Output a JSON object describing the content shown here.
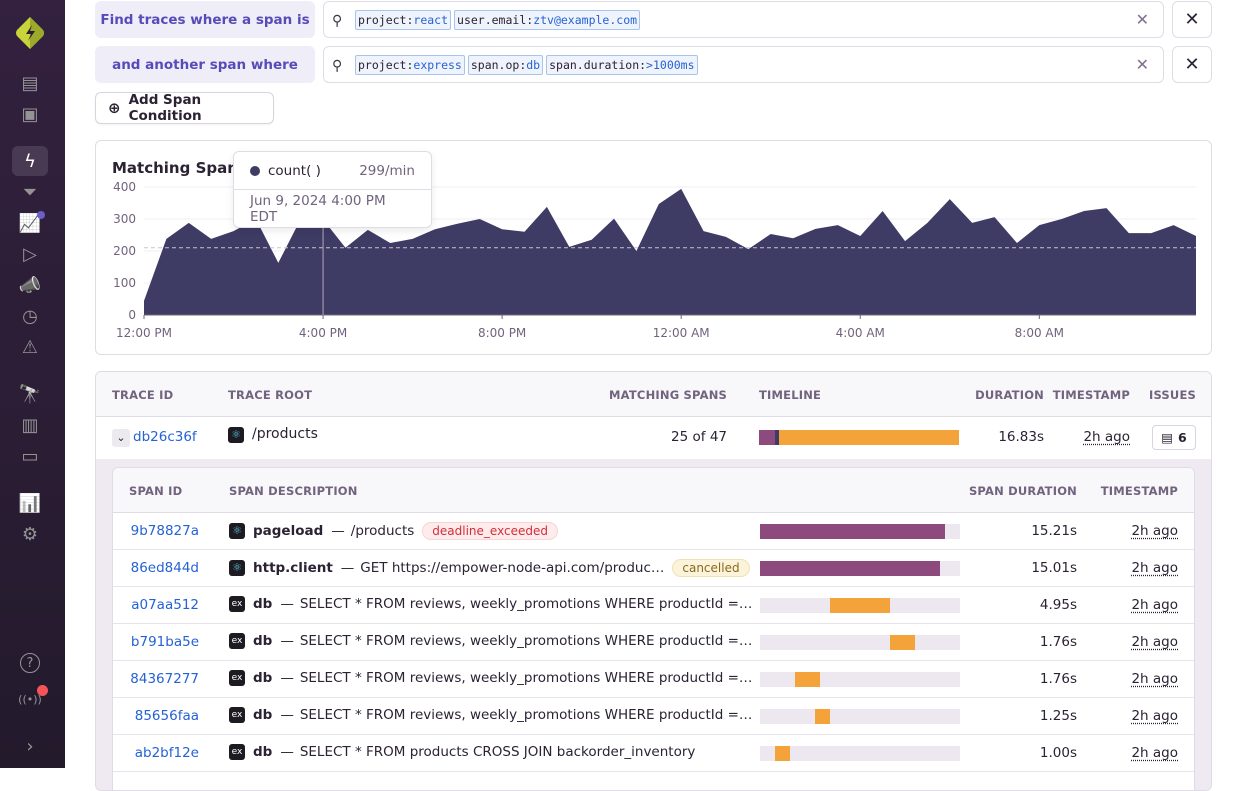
{
  "sidebar": {
    "items": [
      "issues-icon",
      "projects-icon",
      "explore-traces-icon",
      "performance-icon",
      "insights-icon",
      "replays-icon",
      "feedback-icon",
      "crons-icon",
      "alerts-icon",
      "discover-icon",
      "dashboards-icon",
      "releases-icon",
      "stats-icon",
      "settings-icon",
      "help-icon",
      "broadcasts-icon",
      "collapse-icon"
    ],
    "active": "explore-traces-icon"
  },
  "conditions": [
    {
      "label": "Find traces where a span is",
      "tokens": [
        {
          "k": "project:",
          "v": "react"
        },
        {
          "k": "user.email:",
          "v": "ztv@example.com"
        }
      ]
    },
    {
      "label": "and another span where",
      "tokens": [
        {
          "k": "project:",
          "v": "express"
        },
        {
          "k": "span.op:",
          "v": "db"
        },
        {
          "k": "span.duration:",
          "v": ">1000ms"
        }
      ]
    }
  ],
  "add_condition_label": "Add Span Condition",
  "chart": {
    "title": "Matching Spans",
    "tooltip": {
      "series": "count( )",
      "value": "299/min",
      "time": "Jun 9, 2024 4:00 PM EDT"
    }
  },
  "chart_data": {
    "type": "area",
    "title": "Matching Spans",
    "series": [
      {
        "name": "count( )",
        "values": [
          44,
          238,
          288,
          238,
          262,
          300,
          163,
          300,
          299,
          210,
          266,
          225,
          238,
          268,
          285,
          300,
          268,
          260,
          338,
          213,
          235,
          301,
          200,
          347,
          394,
          262,
          244,
          206,
          253,
          240,
          269,
          281,
          247,
          325,
          231,
          288,
          362,
          288,
          306,
          225,
          281,
          300,
          325,
          334,
          256,
          256,
          281,
          247
        ]
      }
    ],
    "x_start": "12:00 PM",
    "x_step_minutes": 30,
    "x_ticks": [
      "12:00 PM",
      "4:00 PM",
      "8:00 PM",
      "12:00 AM",
      "4:00 AM",
      "8:00 AM"
    ],
    "y_ticks": [
      0,
      100,
      200,
      300,
      400
    ],
    "ylim": [
      0,
      400
    ],
    "reference_line": 210,
    "color": "#3e3b64"
  },
  "table": {
    "headers": {
      "trace_id": "TRACE ID",
      "trace_root": "TRACE ROOT",
      "matching": "MATCHING SPANS",
      "timeline": "TIMELINE",
      "duration": "DURATION",
      "timestamp": "TIMESTAMP",
      "issues": "ISSUES"
    },
    "trace": {
      "id": "db26c36f",
      "root": "/products",
      "matching": "25 of 47",
      "duration": "16.83s",
      "timestamp": "2h ago",
      "issues": "6",
      "timeline": [
        {
          "pct": 8,
          "color": "#8c4b7c"
        },
        {
          "pct": 2,
          "color": "#3e3b64"
        },
        {
          "pct": 90,
          "color": "#f3a33a"
        }
      ]
    },
    "span_headers": {
      "id": "SPAN ID",
      "desc": "SPAN DESCRIPTION",
      "duration": "SPAN DURATION",
      "timestamp": "TIMESTAMP"
    },
    "spans": [
      {
        "id": "9b78827a",
        "project": "react",
        "op": "pageload",
        "desc": "/products",
        "badge": "deadline_exceeded",
        "badge_type": "error",
        "start": 0,
        "width": 92.5,
        "color": "#8c4b7c",
        "duration": "15.21s",
        "timestamp": "2h ago"
      },
      {
        "id": "86ed844d",
        "project": "react",
        "op": "http.client",
        "desc": "GET https://empower-node-api.com/produc…",
        "badge": "cancelled",
        "badge_type": "warning",
        "start": 0,
        "width": 90,
        "color": "#8c4b7c",
        "duration": "15.01s",
        "timestamp": "2h ago"
      },
      {
        "id": "a07aa512",
        "project": "express",
        "op": "db",
        "desc": "SELECT * FROM reviews, weekly_promotions WHERE productId =…",
        "start": 35,
        "width": 30,
        "color": "#f3a33a",
        "duration": "4.95s",
        "timestamp": "2h ago"
      },
      {
        "id": "b791ba5e",
        "project": "express",
        "op": "db",
        "desc": "SELECT * FROM reviews, weekly_promotions WHERE productId =…",
        "start": 65,
        "width": 12.5,
        "color": "#f3a33a",
        "duration": "1.76s",
        "timestamp": "2h ago"
      },
      {
        "id": "84367277",
        "project": "express",
        "op": "db",
        "desc": "SELECT * FROM reviews, weekly_promotions WHERE productId =…",
        "start": 17.5,
        "width": 12.5,
        "color": "#f3a33a",
        "duration": "1.76s",
        "timestamp": "2h ago"
      },
      {
        "id": "85656faa",
        "project": "express",
        "op": "db",
        "desc": "SELECT * FROM reviews, weekly_promotions WHERE productId =…",
        "start": 27.5,
        "width": 7.5,
        "color": "#f3a33a",
        "duration": "1.25s",
        "timestamp": "2h ago"
      },
      {
        "id": "ab2bf12e",
        "project": "express",
        "op": "db",
        "desc": "SELECT * FROM products CROSS JOIN backorder_inventory",
        "start": 7.5,
        "width": 7.5,
        "color": "#f3a33a",
        "duration": "1.00s",
        "timestamp": "2h ago"
      }
    ]
  }
}
